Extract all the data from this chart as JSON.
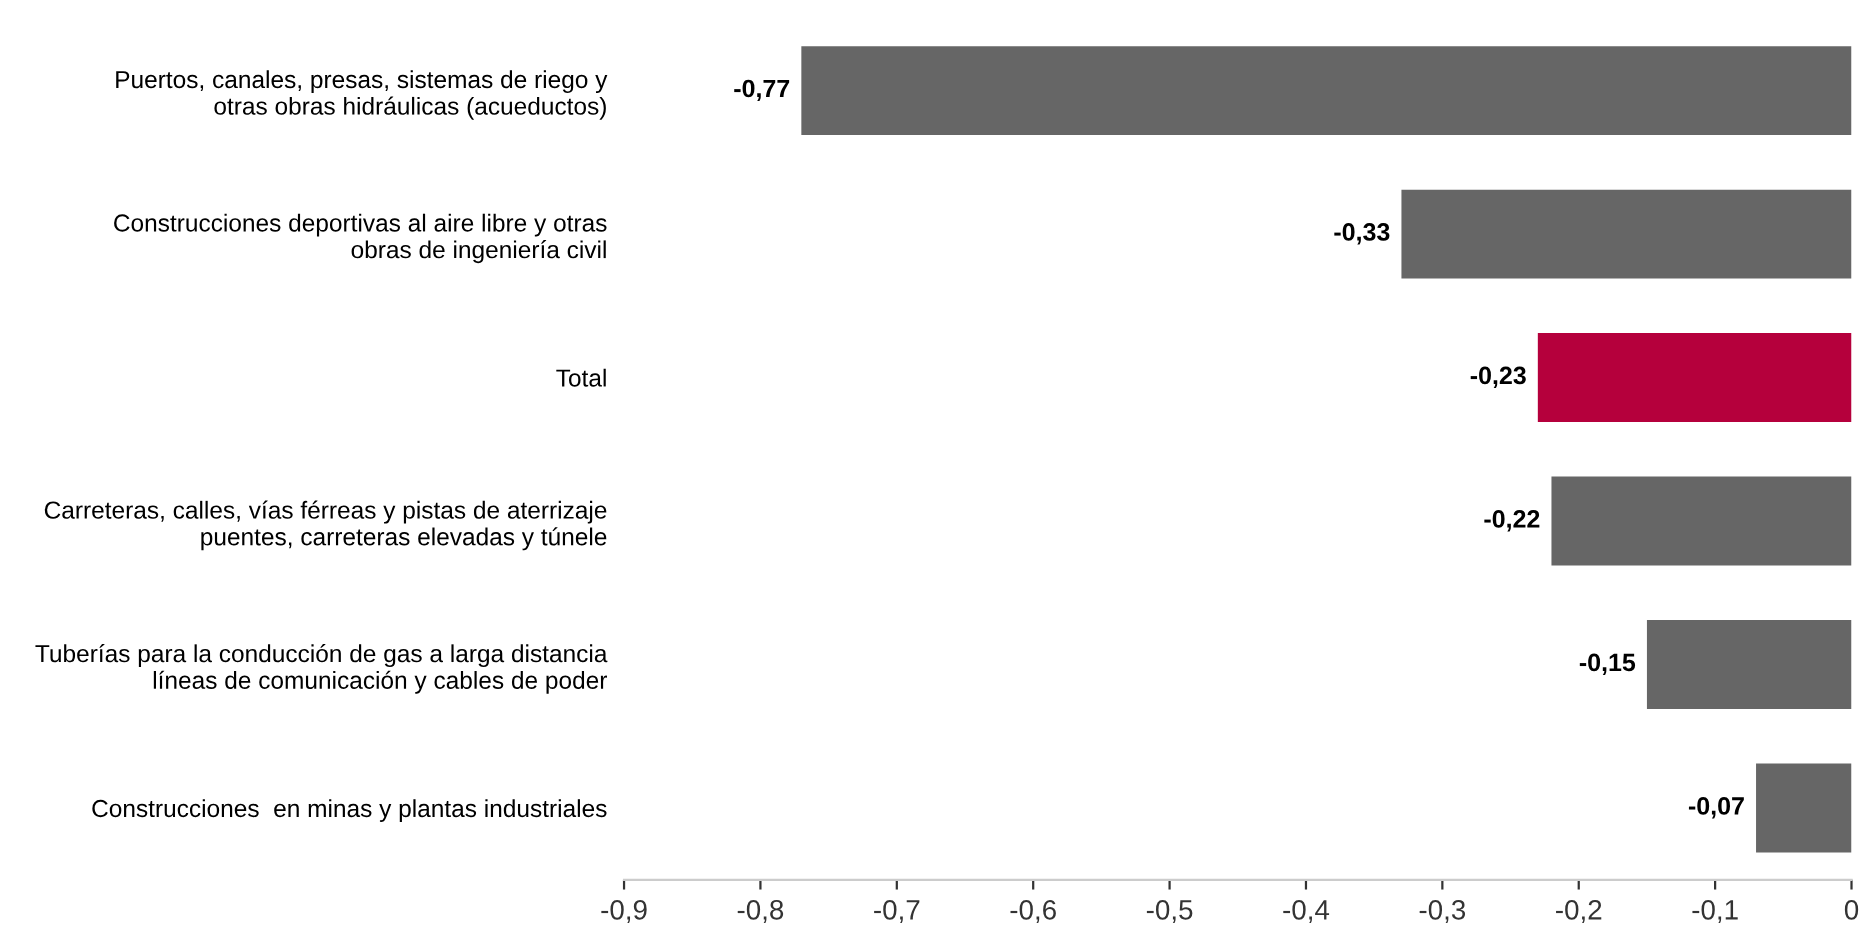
{
  "chart_data": {
    "type": "bar",
    "orientation": "horizontal",
    "categories": [
      "Puertos, canales, presas, sistemas de riego y\notras obras hidráulicas (acueductos)",
      "Construcciones deportivas al aire libre y otras\nobras de ingeniería civil",
      "Total",
      "Carreteras, calles, vías férreas y pistas de aterrizaje\npuentes, carreteras elevadas y túnele",
      "Tuberías para la conducción de gas a larga distancia\nlíneas de comunicación y cables de poder",
      "Construcciones  en minas y plantas industriales"
    ],
    "values": [
      -0.77,
      -0.33,
      -0.23,
      -0.22,
      -0.15,
      -0.07
    ],
    "colors": [
      "#666666",
      "#666666",
      "#b5003c",
      "#666666",
      "#666666",
      "#666666"
    ],
    "value_labels": [
      "-0,77",
      "-0,33",
      "-0,23",
      "-0,22",
      "-0,15",
      "-0,07"
    ],
    "xlim": [
      -0.9,
      0
    ],
    "xticks": [
      {
        "value": -0.9,
        "label": "-0,9"
      },
      {
        "value": -0.8,
        "label": "-0,8"
      },
      {
        "value": -0.7,
        "label": "-0,7"
      },
      {
        "value": -0.6,
        "label": "-0,6"
      },
      {
        "value": -0.5,
        "label": "-0,5"
      },
      {
        "value": -0.4,
        "label": "-0,4"
      },
      {
        "value": -0.3,
        "label": "-0,3"
      },
      {
        "value": -0.2,
        "label": "-0,2"
      },
      {
        "value": -0.1,
        "label": "-0,1"
      },
      {
        "value": 0,
        "label": "0"
      }
    ],
    "grid": false,
    "legend": false
  }
}
